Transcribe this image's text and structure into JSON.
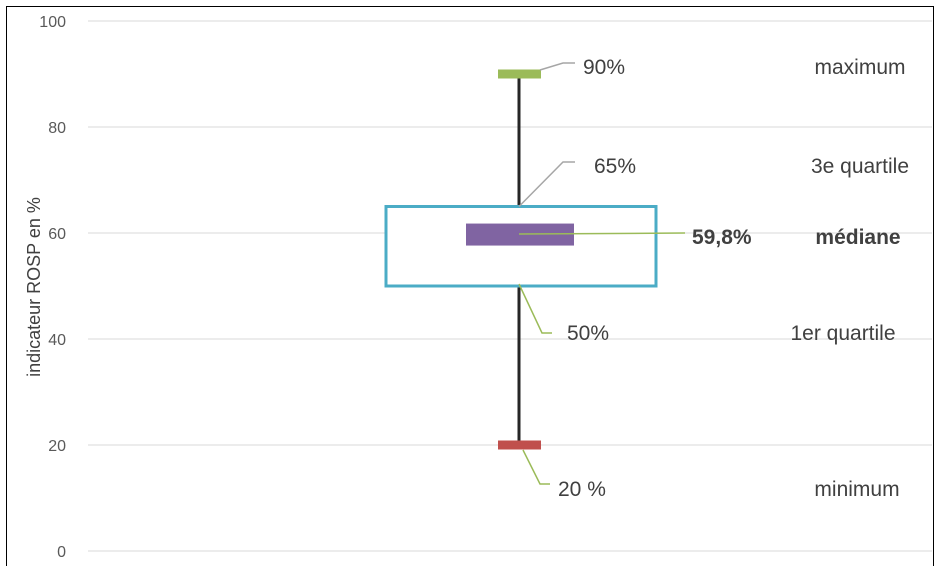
{
  "chart_data": {
    "type": "boxplot",
    "ylabel": "indicateur ROSP en %",
    "ylim": [
      0,
      100
    ],
    "yticks": [
      0,
      20,
      40,
      60,
      80,
      100
    ],
    "grid": true,
    "stats": {
      "minimum": 20,
      "q1": 50,
      "median": 59.8,
      "q3": 65,
      "maximum": 90
    },
    "annotations": [
      {
        "key": "maximum",
        "value_text": "90%",
        "label": "maximum",
        "color": "#9bbb59",
        "leader_color": "#a6a6a6",
        "bold": false
      },
      {
        "key": "q3",
        "value_text": "65%",
        "label": "3e quartile",
        "color": "#4bacc6",
        "leader_color": "#a6a6a6",
        "bold": false
      },
      {
        "key": "median",
        "value_text": "59,8%",
        "label": "médiane",
        "color": "#8064a2",
        "leader_color": "#9bbb59",
        "bold": true
      },
      {
        "key": "q1",
        "value_text": "50%",
        "label": "1er quartile",
        "color": "#4bacc6",
        "leader_color": "#9bbb59",
        "bold": false
      },
      {
        "key": "minimum",
        "value_text": "20 %",
        "label": "minimum",
        "color": "#c0504d",
        "leader_color": "#9bbb59",
        "bold": false
      }
    ],
    "colors": {
      "box": "#4bacc6",
      "whisker": "#262626",
      "max_marker": "#9bbb59",
      "min_marker": "#c0504d",
      "median_marker": "#8064a2",
      "grid": "#d9d9d9"
    }
  }
}
